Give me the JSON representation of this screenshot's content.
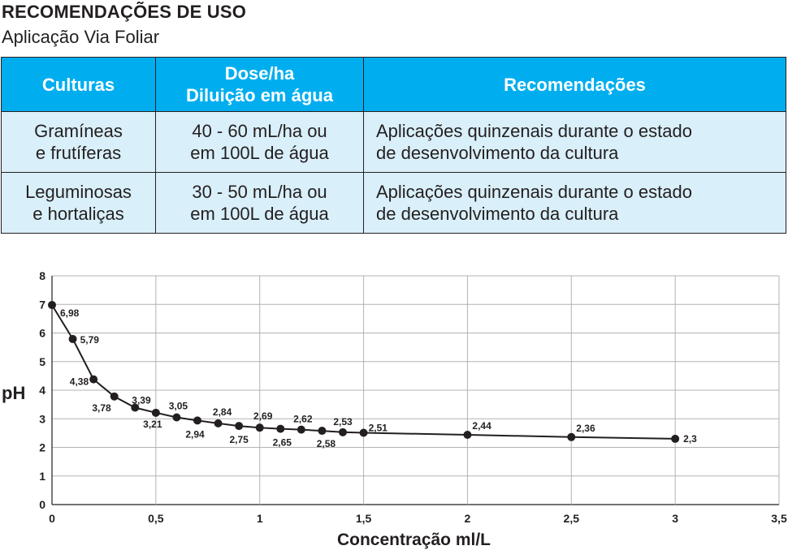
{
  "header": {
    "title": "RECOMENDAÇÕES DE USO",
    "subtitle": "Aplicação Via Foliar"
  },
  "table": {
    "headers": [
      {
        "lines": [
          "Culturas"
        ]
      },
      {
        "lines": [
          "Dose/ha",
          "Diluição em água"
        ]
      },
      {
        "lines": [
          "Recomendações"
        ]
      }
    ],
    "rows": [
      {
        "culturas": [
          "Gramíneas",
          "e frutíferas"
        ],
        "dose": [
          "40 - 60 mL/ha ou",
          "em 100L de água"
        ],
        "recomendacoes": [
          "Aplicações quinzenais durante o estado",
          "de desenvolvimento da cultura"
        ]
      },
      {
        "culturas": [
          "Leguminosas",
          "e hortaliças"
        ],
        "dose": [
          "30 - 50 mL/ha ou",
          "em 100L de água"
        ],
        "recomendacoes": [
          "Aplicações quinzenais durante o estado",
          "de desenvolvimento da cultura"
        ]
      }
    ],
    "colors": {
      "header_bg": "#00aeef",
      "row_bg": "#d9eff9",
      "border": "#231f20"
    }
  },
  "chart_data": {
    "type": "line",
    "xlabel": "Concentração ml/L",
    "ylabel": "pH",
    "xlim": [
      0,
      3.5
    ],
    "ylim": [
      0,
      8
    ],
    "xticks": [
      0,
      0.5,
      1,
      1.5,
      2,
      2.5,
      3,
      3.5
    ],
    "xtick_labels": [
      "0",
      "0,5",
      "1",
      "1,5",
      "2",
      "2,5",
      "3",
      "3,5"
    ],
    "yticks": [
      0,
      1,
      2,
      3,
      4,
      5,
      6,
      7,
      8
    ],
    "ytick_labels": [
      "0",
      "1",
      "2",
      "3",
      "4",
      "5",
      "6",
      "7",
      "8"
    ],
    "grid": true,
    "series": [
      {
        "x": [
          0,
          0.1,
          0.2,
          0.3,
          0.4,
          0.5,
          0.6,
          0.7,
          0.8,
          0.9,
          1.0,
          1.1,
          1.2,
          1.3,
          1.4,
          1.5,
          2.0,
          2.5,
          3.0
        ],
        "y": [
          6.98,
          5.79,
          4.38,
          3.78,
          3.39,
          3.21,
          3.05,
          2.94,
          2.84,
          2.75,
          2.69,
          2.65,
          2.62,
          2.58,
          2.53,
          2.51,
          2.44,
          2.36,
          2.3
        ],
        "labels": [
          "6,98",
          "5,79",
          "4,38",
          "3,78",
          "3,39",
          "3,21",
          "3,05",
          "2,94",
          "2,84",
          "2,75",
          "2,69",
          "2,65",
          "2,62",
          "2,58",
          "2,53",
          "2,51",
          "2,44",
          "2,36",
          "2,3"
        ]
      }
    ],
    "colors": {
      "line": "#231f20",
      "grid": "#b3b3b3"
    }
  }
}
